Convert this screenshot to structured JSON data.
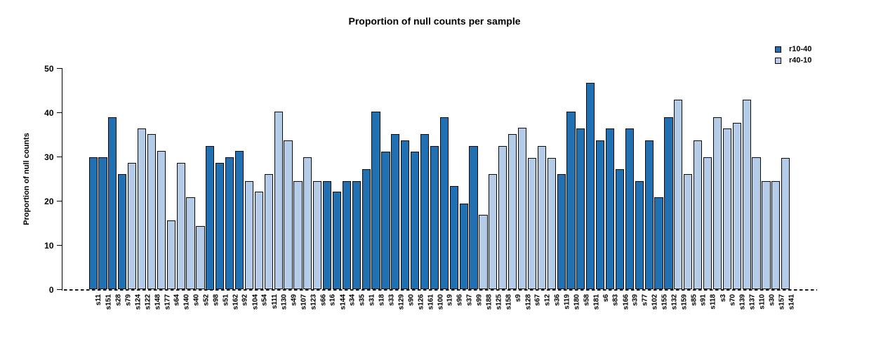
{
  "chart_data": {
    "type": "bar",
    "title": "Proportion of null counts per sample",
    "xlabel": "",
    "ylabel": "Proportion of null counts",
    "ylim": [
      0,
      50
    ],
    "yticks": [
      0,
      10,
      20,
      30,
      40,
      50
    ],
    "grid": false,
    "legend_position": "top-right",
    "baseline": {
      "y": 0,
      "style": "dashed"
    },
    "legend": [
      {
        "name": "r10-40",
        "color": "#2171b2"
      },
      {
        "name": "r40-10",
        "color": "#b5cce8"
      }
    ],
    "colors": {
      "r10-40": "#2171b2",
      "r40-10": "#b5cce8"
    },
    "bars": [
      {
        "label": "s11",
        "value": 29.9,
        "group": "r10-40"
      },
      {
        "label": "s151",
        "value": 29.9,
        "group": "r10-40"
      },
      {
        "label": "s28",
        "value": 39.0,
        "group": "r10-40"
      },
      {
        "label": "s79",
        "value": 26.1,
        "group": "r10-40"
      },
      {
        "label": "s124",
        "value": 28.6,
        "group": "r40-10"
      },
      {
        "label": "s122",
        "value": 36.4,
        "group": "r40-10"
      },
      {
        "label": "s148",
        "value": 35.1,
        "group": "r40-10"
      },
      {
        "label": "s177",
        "value": 31.3,
        "group": "r40-10"
      },
      {
        "label": "s64",
        "value": 15.6,
        "group": "r40-10"
      },
      {
        "label": "s140",
        "value": 28.6,
        "group": "r40-10"
      },
      {
        "label": "s40",
        "value": 20.9,
        "group": "r40-10"
      },
      {
        "label": "s52",
        "value": 14.3,
        "group": "r40-10"
      },
      {
        "label": "s98",
        "value": 32.5,
        "group": "r10-40"
      },
      {
        "label": "s51",
        "value": 28.6,
        "group": "r10-40"
      },
      {
        "label": "s162",
        "value": 29.9,
        "group": "r10-40"
      },
      {
        "label": "s92",
        "value": 31.3,
        "group": "r10-40"
      },
      {
        "label": "s104",
        "value": 24.6,
        "group": "r40-10"
      },
      {
        "label": "s54",
        "value": 22.2,
        "group": "r40-10"
      },
      {
        "label": "s111",
        "value": 26.1,
        "group": "r40-10"
      },
      {
        "label": "s130",
        "value": 40.3,
        "group": "r40-10"
      },
      {
        "label": "s49",
        "value": 33.8,
        "group": "r40-10"
      },
      {
        "label": "s107",
        "value": 24.6,
        "group": "r40-10"
      },
      {
        "label": "s123",
        "value": 29.9,
        "group": "r40-10"
      },
      {
        "label": "s66",
        "value": 24.6,
        "group": "r40-10"
      },
      {
        "label": "s16",
        "value": 24.6,
        "group": "r10-40"
      },
      {
        "label": "s144",
        "value": 22.2,
        "group": "r10-40"
      },
      {
        "label": "s34",
        "value": 24.6,
        "group": "r10-40"
      },
      {
        "label": "s35",
        "value": 24.6,
        "group": "r10-40"
      },
      {
        "label": "s31",
        "value": 27.3,
        "group": "r10-40"
      },
      {
        "label": "s18",
        "value": 40.2,
        "group": "r10-40"
      },
      {
        "label": "s33",
        "value": 31.2,
        "group": "r10-40"
      },
      {
        "label": "s129",
        "value": 35.1,
        "group": "r10-40"
      },
      {
        "label": "s90",
        "value": 33.8,
        "group": "r10-40"
      },
      {
        "label": "s126",
        "value": 31.2,
        "group": "r10-40"
      },
      {
        "label": "s161",
        "value": 35.1,
        "group": "r10-40"
      },
      {
        "label": "s100",
        "value": 32.4,
        "group": "r10-40"
      },
      {
        "label": "s19",
        "value": 39.0,
        "group": "r10-40"
      },
      {
        "label": "s96",
        "value": 23.4,
        "group": "r10-40"
      },
      {
        "label": "s37",
        "value": 19.5,
        "group": "r10-40"
      },
      {
        "label": "s99",
        "value": 32.4,
        "group": "r10-40"
      },
      {
        "label": "s188",
        "value": 16.9,
        "group": "r40-10"
      },
      {
        "label": "s125",
        "value": 26.1,
        "group": "r40-10"
      },
      {
        "label": "s158",
        "value": 32.4,
        "group": "r40-10"
      },
      {
        "label": "s9",
        "value": 35.1,
        "group": "r40-10"
      },
      {
        "label": "s128",
        "value": 36.6,
        "group": "r40-10"
      },
      {
        "label": "s67",
        "value": 29.8,
        "group": "r40-10"
      },
      {
        "label": "s12",
        "value": 32.4,
        "group": "r40-10"
      },
      {
        "label": "s36",
        "value": 29.8,
        "group": "r40-10"
      },
      {
        "label": "s119",
        "value": 26.1,
        "group": "r10-40"
      },
      {
        "label": "s180",
        "value": 40.3,
        "group": "r10-40"
      },
      {
        "label": "s58",
        "value": 36.5,
        "group": "r10-40"
      },
      {
        "label": "s181",
        "value": 46.8,
        "group": "r10-40"
      },
      {
        "label": "s6",
        "value": 33.8,
        "group": "r10-40"
      },
      {
        "label": "s83",
        "value": 36.4,
        "group": "r10-40"
      },
      {
        "label": "s166",
        "value": 27.3,
        "group": "r10-40"
      },
      {
        "label": "s39",
        "value": 36.4,
        "group": "r10-40"
      },
      {
        "label": "s77",
        "value": 24.6,
        "group": "r10-40"
      },
      {
        "label": "s102",
        "value": 33.8,
        "group": "r10-40"
      },
      {
        "label": "s155",
        "value": 20.9,
        "group": "r10-40"
      },
      {
        "label": "s132",
        "value": 39.0,
        "group": "r10-40"
      },
      {
        "label": "s159",
        "value": 42.9,
        "group": "r40-10"
      },
      {
        "label": "s85",
        "value": 26.1,
        "group": "r40-10"
      },
      {
        "label": "s91",
        "value": 33.8,
        "group": "r40-10"
      },
      {
        "label": "s118",
        "value": 29.9,
        "group": "r40-10"
      },
      {
        "label": "s3",
        "value": 39.0,
        "group": "r40-10"
      },
      {
        "label": "s70",
        "value": 36.5,
        "group": "r40-10"
      },
      {
        "label": "s139",
        "value": 37.7,
        "group": "r40-10"
      },
      {
        "label": "s137",
        "value": 42.9,
        "group": "r40-10"
      },
      {
        "label": "s110",
        "value": 29.9,
        "group": "r40-10"
      },
      {
        "label": "s30",
        "value": 24.6,
        "group": "r40-10"
      },
      {
        "label": "s157",
        "value": 24.6,
        "group": "r40-10"
      },
      {
        "label": "s141",
        "value": 29.8,
        "group": "r40-10"
      }
    ]
  }
}
